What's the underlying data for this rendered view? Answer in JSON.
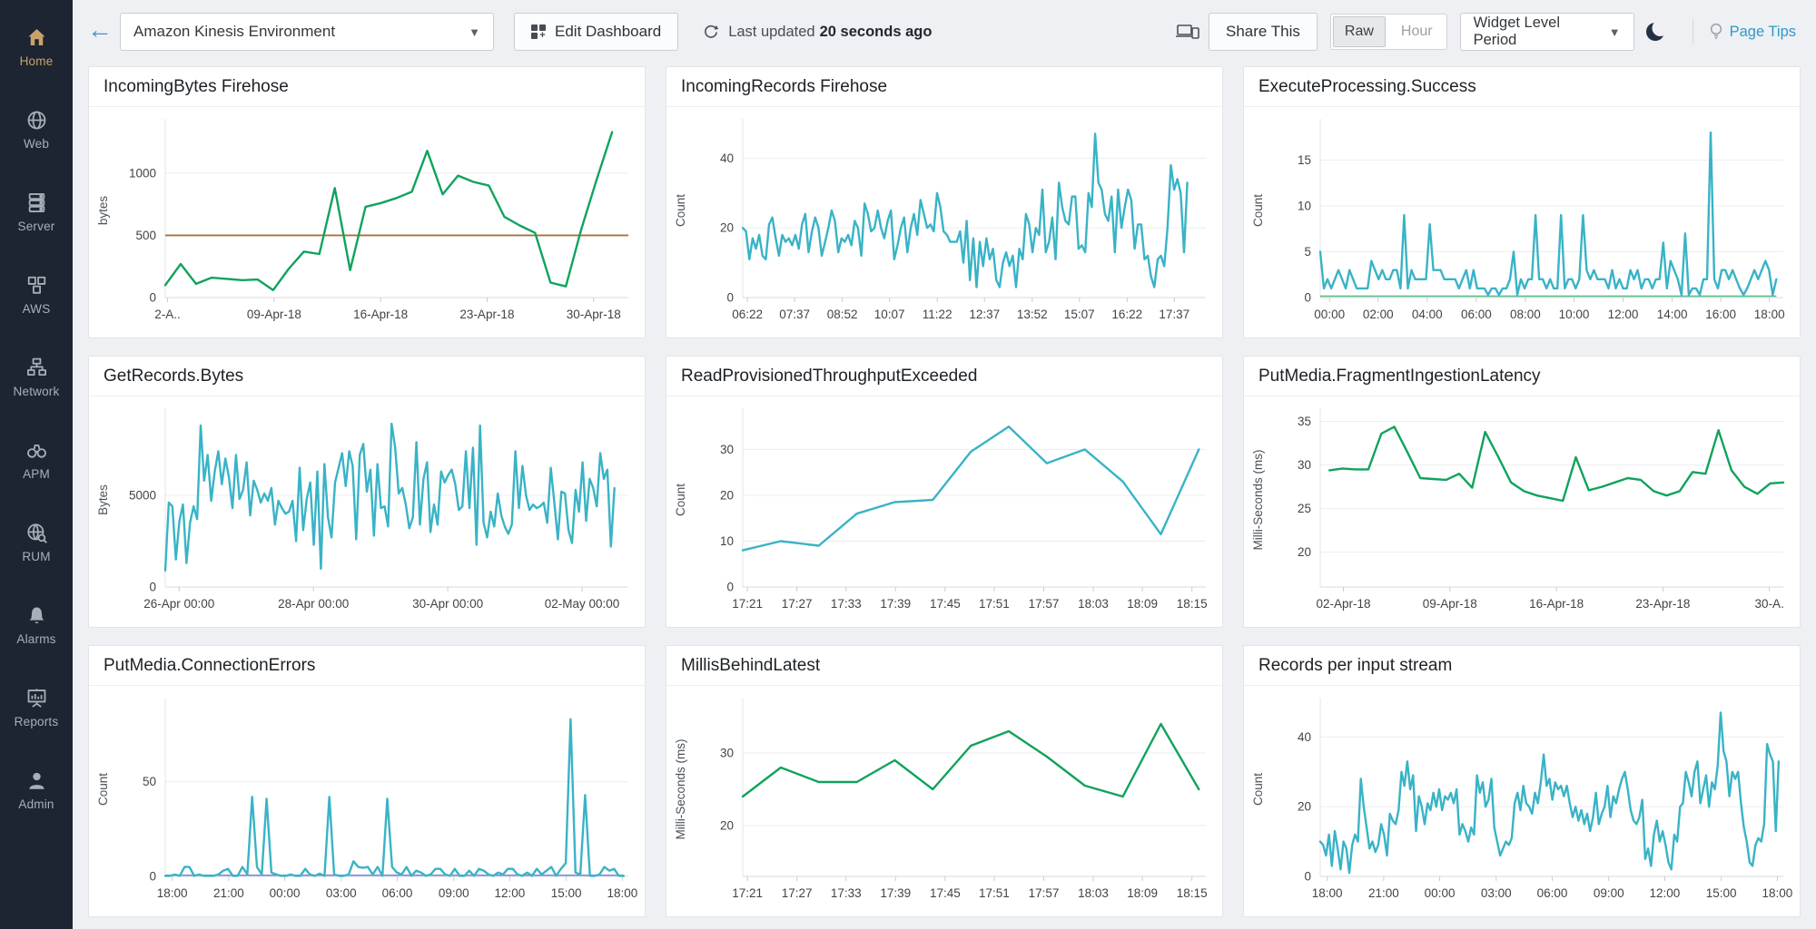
{
  "colors": {
    "accent_green": "#0fa35c",
    "accent_cyan": "#39b3c6",
    "threshold_orange": "#a9713c",
    "baseline_green": "#5bbf8d",
    "baseline_blue": "#7b87d7",
    "sidebar_bg": "#1c2531",
    "active_gold": "#c9a26b",
    "link_blue": "#2e9bc6"
  },
  "sidebar": {
    "items": [
      {
        "label": "Home",
        "icon": "home-icon",
        "active": true
      },
      {
        "label": "Web",
        "icon": "globe-icon",
        "active": false
      },
      {
        "label": "Server",
        "icon": "server-icon",
        "active": false
      },
      {
        "label": "AWS",
        "icon": "aws-cubes-icon",
        "active": false
      },
      {
        "label": "Network",
        "icon": "network-icon",
        "active": false
      },
      {
        "label": "APM",
        "icon": "binoculars-icon",
        "active": false
      },
      {
        "label": "RUM",
        "icon": "globe-magnifier-icon",
        "active": false
      },
      {
        "label": "Alarms",
        "icon": "bell-icon",
        "active": false
      },
      {
        "label": "Reports",
        "icon": "presentation-icon",
        "active": false
      },
      {
        "label": "Admin",
        "icon": "person-icon",
        "active": false
      }
    ]
  },
  "topbar": {
    "dashboard_select": {
      "value": "Amazon Kinesis Environment"
    },
    "edit_dashboard_label": "Edit Dashboard",
    "last_updated_prefix": "Last updated",
    "last_updated_value": "20 seconds ago",
    "share_label": "Share This",
    "granularity": {
      "options": [
        "Raw",
        "Hour"
      ],
      "selected": "Raw"
    },
    "period_select": {
      "value": "Widget Level Period"
    },
    "page_tips_label": "Page Tips"
  },
  "chart_data": [
    {
      "type": "line",
      "title": "IncomingBytes Firehose",
      "ylabel": "bytes",
      "ylim": [
        0,
        1400
      ],
      "yticks": [
        0,
        500,
        1000
      ],
      "xticks": {
        "labels": [
          "2-A..",
          "09-Apr-18",
          "16-Apr-18",
          "23-Apr-18",
          "30-Apr-18"
        ],
        "pos": [
          0.005,
          0.235,
          0.465,
          0.695,
          0.925
        ]
      },
      "color": "#0fa35c",
      "x_end": 0.965,
      "threshold": {
        "value": 500,
        "color": "#a9713c"
      },
      "values": [
        100,
        270,
        110,
        160,
        150,
        140,
        145,
        60,
        230,
        370,
        350,
        880,
        220,
        730,
        760,
        800,
        850,
        1180,
        830,
        980,
        930,
        900,
        650,
        580,
        520,
        120,
        90,
        550,
        950,
        1330
      ]
    },
    {
      "type": "line",
      "title": "IncomingRecords Firehose",
      "ylabel": "Count",
      "ylim": [
        0,
        50
      ],
      "yticks": [
        0,
        20,
        40
      ],
      "xticks": {
        "labels": [
          "06:22",
          "07:37",
          "08:52",
          "10:07",
          "11:22",
          "12:37",
          "13:52",
          "15:07",
          "16:22",
          "17:37"
        ],
        "pos": [
          0.01,
          0.112,
          0.215,
          0.317,
          0.42,
          0.522,
          0.625,
          0.727,
          0.83,
          0.932
        ]
      },
      "color": "#39b3c6",
      "x_end": 0.96,
      "values": [
        20,
        19,
        11,
        17,
        14,
        18,
        12,
        11,
        21,
        23,
        17,
        12,
        18,
        16,
        17,
        15,
        18,
        14,
        21,
        24,
        13,
        19,
        23,
        20,
        12,
        16,
        20,
        25,
        22,
        13,
        17,
        16,
        18,
        15,
        22,
        20,
        12,
        27,
        24,
        19,
        20,
        25,
        20,
        17,
        22,
        25,
        11,
        15,
        20,
        23,
        13,
        20,
        24,
        18,
        28,
        24,
        20,
        21,
        19,
        30,
        26,
        19,
        18,
        16,
        16,
        16,
        19,
        10,
        22,
        5,
        17,
        3,
        16,
        9,
        17,
        11,
        14,
        5,
        3,
        10,
        13,
        9,
        12,
        3,
        14,
        11,
        24,
        21,
        13,
        20,
        18,
        31,
        13,
        16,
        23,
        11,
        33,
        26,
        22,
        21,
        29,
        29,
        14,
        15,
        13,
        30,
        26,
        47,
        33,
        31,
        24,
        22,
        29,
        13,
        31,
        20,
        26,
        31,
        28,
        14,
        21,
        21,
        11,
        12,
        6,
        3,
        11,
        12,
        9,
        20,
        38,
        31,
        34,
        30,
        13,
        33
      ]
    },
    {
      "type": "line",
      "title": "ExecuteProcessing.Success",
      "ylabel": "Count",
      "ylim": [
        0,
        19
      ],
      "yticks": [
        0,
        5,
        10,
        15
      ],
      "xticks": {
        "labels": [
          "00:00",
          "02:00",
          "04:00",
          "06:00",
          "08:00",
          "10:00",
          "12:00",
          "14:00",
          "16:00",
          "18:00"
        ],
        "pos": [
          0.02,
          0.125,
          0.231,
          0.337,
          0.443,
          0.548,
          0.654,
          0.76,
          0.865,
          0.97
        ]
      },
      "color": "#39b3c6",
      "x_end": 0.985,
      "baseline": {
        "value": 0.15,
        "color": "#5bbf8d"
      },
      "values": [
        5,
        1,
        2,
        1,
        2,
        3,
        2,
        1,
        3,
        2,
        1,
        1,
        1,
        1,
        4,
        3,
        2,
        3,
        2,
        2,
        3,
        3,
        1,
        9,
        1,
        3,
        2,
        2,
        2,
        2,
        8,
        3,
        3,
        3,
        2,
        2,
        2,
        2,
        1,
        2,
        3,
        1,
        3,
        1,
        1,
        1,
        0.3,
        1,
        1,
        0.3,
        1,
        1,
        2,
        5,
        0.3,
        2,
        1,
        2,
        2,
        9,
        2,
        2,
        1,
        2,
        1,
        1,
        9,
        1,
        2,
        2,
        1,
        2,
        9,
        3,
        2,
        3,
        2,
        2,
        2,
        1,
        3,
        1,
        2,
        1,
        1,
        3,
        2,
        3,
        1,
        2,
        2,
        1,
        2,
        2,
        6,
        1,
        4,
        3,
        2,
        0.3,
        7,
        0.3,
        1,
        1,
        0.3,
        2,
        2,
        18,
        2,
        1,
        3,
        3,
        2,
        3,
        2,
        1,
        0.3,
        1,
        2,
        3,
        2,
        3,
        4,
        3,
        0.3,
        2
      ]
    },
    {
      "type": "line",
      "title": "GetRecords.Bytes",
      "ylabel": "Bytes",
      "ylim": [
        0,
        9500
      ],
      "yticks": [
        0,
        5000
      ],
      "xticks": {
        "labels": [
          "26-Apr 00:00",
          "28-Apr 00:00",
          "30-Apr 00:00",
          "02-May 00:00"
        ],
        "pos": [
          0.03,
          0.32,
          0.61,
          0.9
        ]
      },
      "color": "#39b3c6",
      "x_end": 0.97,
      "values": [
        900,
        4600,
        4400,
        1500,
        3600,
        4500,
        1300,
        3500,
        4400,
        3700,
        8800,
        5800,
        7200,
        4700,
        6300,
        7400,
        5600,
        7000,
        6000,
        4300,
        7200,
        4800,
        5300,
        6800,
        3900,
        5800,
        5300,
        4600,
        5100,
        4700,
        5400,
        3400,
        4700,
        4300,
        4000,
        4100,
        4700,
        2500,
        6500,
        3100,
        4800,
        5700,
        2300,
        6300,
        1000,
        6700,
        3800,
        2700,
        5700,
        6500,
        7300,
        5500,
        7400,
        6600,
        2600,
        7200,
        7800,
        5200,
        6400,
        2800,
        6700,
        4300,
        4400,
        3300,
        8900,
        7600,
        5100,
        5400,
        4500,
        3200,
        3800,
        7900,
        3400,
        5900,
        6800,
        3000,
        4500,
        3400,
        6300,
        5700,
        6100,
        6400,
        5600,
        4200,
        4400,
        7400,
        4300,
        7600,
        2300,
        8800,
        3500,
        2700,
        4100,
        3300,
        5100,
        3900,
        3300,
        2900,
        3400,
        7400,
        4300,
        6600,
        5000,
        4200,
        4500,
        4300,
        4400,
        4600,
        3500,
        6500,
        4600,
        2600,
        5200,
        5100,
        3100,
        2400,
        5300,
        4100,
        6800,
        3600,
        5900,
        5400,
        4400,
        7300,
        5900,
        6400,
        2200,
        5400
      ]
    },
    {
      "type": "line",
      "title": "ReadProvisionedThroughputExceeded",
      "ylabel": "Count",
      "ylim": [
        0,
        38
      ],
      "yticks": [
        0,
        10,
        20,
        30
      ],
      "xticks": {
        "labels": [
          "17:21",
          "17:27",
          "17:33",
          "17:39",
          "17:45",
          "17:51",
          "17:57",
          "18:03",
          "18:09",
          "18:15"
        ],
        "pos": [
          0.01,
          0.117,
          0.223,
          0.33,
          0.437,
          0.543,
          0.65,
          0.757,
          0.863,
          0.97
        ]
      },
      "color": "#39b3c6",
      "x_end": 0.985,
      "values": [
        8,
        10,
        9,
        16,
        18.5,
        19,
        29.5,
        35,
        27,
        30,
        23,
        11.5,
        30
      ]
    },
    {
      "type": "line",
      "title": "PutMedia.FragmentIngestionLatency",
      "ylabel": "Milli-Seconds (ms)",
      "ylim": [
        16,
        36
      ],
      "yticks": [
        20,
        25,
        30,
        35
      ],
      "xticks": {
        "labels": [
          "02-Apr-18",
          "09-Apr-18",
          "16-Apr-18",
          "23-Apr-18",
          "30-A."
        ],
        "pos": [
          0.05,
          0.28,
          0.51,
          0.74,
          0.97
        ]
      },
      "color": "#0fa35c",
      "x_start": 0.02,
      "x_end": 1,
      "values": [
        29.4,
        29.6,
        29.5,
        29.5,
        33.6,
        34.4,
        31.5,
        28.5,
        28.4,
        28.3,
        29,
        27.4,
        33.8,
        31,
        28,
        27,
        26.5,
        26.2,
        25.9,
        30.9,
        27.1,
        27.5,
        28,
        28.5,
        28.3,
        27,
        26.5,
        27,
        29.2,
        29,
        34,
        29.4,
        27.5,
        26.7,
        27.9,
        28
      ]
    },
    {
      "type": "line",
      "title": "PutMedia.ConnectionErrors",
      "ylabel": "Count",
      "ylim": [
        0,
        92
      ],
      "yticks": [
        0,
        50
      ],
      "xticks": {
        "labels": [
          "18:00",
          "21:00",
          "00:00",
          "03:00",
          "06:00",
          "09:00",
          "12:00",
          "15:00",
          "18:00"
        ],
        "pos": [
          0.015,
          0.137,
          0.258,
          0.38,
          0.501,
          0.623,
          0.744,
          0.866,
          0.987
        ]
      },
      "color": "#39b3c6",
      "x_end": 0.99,
      "baseline": {
        "value": 0.6,
        "color": "#7b87d7"
      },
      "values": [
        0.3,
        0.3,
        1,
        0.3,
        5,
        5,
        0.3,
        1,
        0.3,
        0.3,
        0.3,
        1,
        3,
        4,
        0.3,
        0.3,
        5,
        1,
        42,
        5,
        1,
        41,
        2,
        1,
        0.3,
        0.3,
        1,
        0.3,
        0.3,
        4,
        1,
        0.3,
        1.5,
        0.3,
        42,
        1,
        0.3,
        0.3,
        1,
        8,
        5,
        4.5,
        5,
        1,
        5,
        0.3,
        41,
        5,
        2,
        1,
        5,
        0.3,
        3,
        2,
        0.3,
        1,
        4,
        4,
        1,
        0.3,
        4,
        0.3,
        0.3,
        3,
        0.3,
        4,
        3,
        1,
        0.3,
        2,
        1,
        4,
        4,
        1,
        0.3,
        2,
        0.3,
        4,
        1,
        3,
        5,
        0.3,
        4,
        7,
        83,
        2,
        1,
        43,
        0.3,
        0.3,
        1,
        5,
        3,
        4,
        0.3,
        0.3
      ]
    },
    {
      "type": "line",
      "title": "MillisBehindLatest",
      "ylabel": "Milli-Seconds (ms)",
      "ylim": [
        13,
        37
      ],
      "yticks": [
        20,
        30
      ],
      "xticks": {
        "labels": [
          "17:21",
          "17:27",
          "17:33",
          "17:39",
          "17:45",
          "17:51",
          "17:57",
          "18:03",
          "18:09",
          "18:15"
        ],
        "pos": [
          0.01,
          0.117,
          0.223,
          0.33,
          0.437,
          0.543,
          0.65,
          0.757,
          0.863,
          0.97
        ]
      },
      "color": "#0fa35c",
      "x_end": 0.985,
      "values": [
        24,
        28,
        26,
        26,
        29,
        25,
        31,
        33,
        29.5,
        25.5,
        24,
        34,
        25
      ]
    },
    {
      "type": "line",
      "title": "Records per input stream",
      "ylabel": "Count",
      "ylim": [
        0,
        50
      ],
      "yticks": [
        0,
        20,
        40
      ],
      "xticks": {
        "labels": [
          "18:00",
          "21:00",
          "00:00",
          "03:00",
          "06:00",
          "09:00",
          "12:00",
          "15:00",
          "18:00"
        ],
        "pos": [
          0.015,
          0.137,
          0.258,
          0.38,
          0.501,
          0.623,
          0.744,
          0.866,
          0.987
        ]
      },
      "color": "#39b3c6",
      "x_end": 0.99,
      "values": [
        10,
        9,
        6,
        12,
        3,
        13,
        8,
        2,
        10,
        8,
        1,
        9,
        12,
        10,
        28,
        20,
        14,
        8,
        10,
        7,
        9,
        15,
        12,
        6,
        18,
        16,
        15,
        19,
        30,
        26,
        33,
        25,
        29,
        13,
        23,
        20,
        15,
        21,
        19,
        24,
        20,
        25,
        19,
        23,
        22,
        24,
        21,
        25,
        12,
        15,
        13,
        10,
        14,
        12,
        29,
        24,
        27,
        20,
        22,
        28,
        14,
        10,
        6,
        8,
        10,
        9,
        11,
        21,
        24,
        19,
        26,
        21,
        20,
        18,
        24,
        21,
        27,
        35,
        26,
        28,
        22,
        27,
        25,
        26,
        23,
        26,
        21,
        17,
        20,
        16,
        19,
        15,
        18,
        13,
        17,
        24,
        15,
        18,
        20,
        26,
        17,
        23,
        21,
        25,
        28,
        30,
        25,
        19,
        16,
        15,
        17,
        22,
        5,
        8,
        3,
        12,
        16,
        10,
        13,
        9,
        4,
        2,
        12,
        10,
        20,
        21,
        30,
        27,
        23,
        30,
        33,
        21,
        25,
        29,
        20,
        27,
        25,
        32,
        47,
        36,
        33,
        23,
        30,
        28,
        30,
        21,
        14,
        10,
        4,
        3,
        9,
        11,
        10,
        15,
        38,
        35,
        33,
        13,
        33
      ]
    }
  ]
}
